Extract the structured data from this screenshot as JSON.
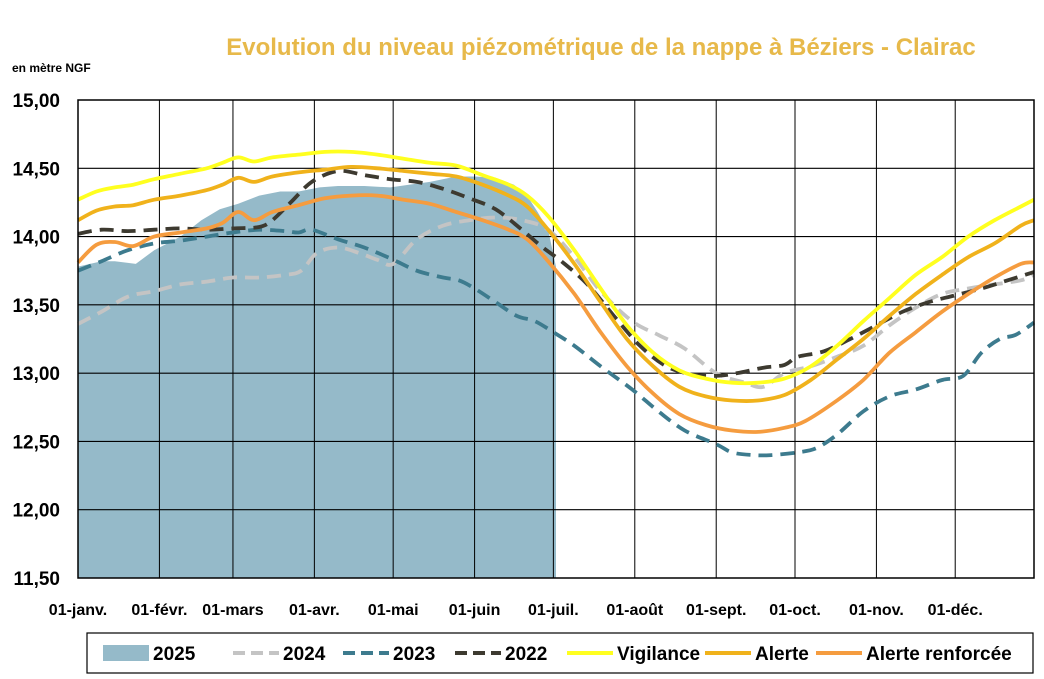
{
  "chart_data": {
    "type": "line",
    "title": "Evolution du niveau piézométrique  de la nappe à Béziers  - Clairac",
    "ylabel": "en mètre NGF",
    "xlabel": "",
    "ylim": [
      11.5,
      15.0
    ],
    "xlim": [
      1,
      365
    ],
    "grid": true,
    "legend_position": "bottom",
    "y_ticks": [
      "11,50",
      "12,00",
      "12,50",
      "13,00",
      "13,50",
      "14,00",
      "14,50",
      "15,00"
    ],
    "y_tick_values": [
      11.5,
      12.0,
      12.5,
      13.0,
      13.5,
      14.0,
      14.5,
      15.0
    ],
    "x_ticks": [
      {
        "day": 1,
        "label": "01-janv."
      },
      {
        "day": 32,
        "label": "01-févr."
      },
      {
        "day": 60,
        "label": "01-mars"
      },
      {
        "day": 91,
        "label": "01-avr."
      },
      {
        "day": 121,
        "label": "01-mai"
      },
      {
        "day": 152,
        "label": "01-juin"
      },
      {
        "day": 182,
        "label": "01-juil."
      },
      {
        "day": 213,
        "label": "01-août"
      },
      {
        "day": 244,
        "label": "01-sept."
      },
      {
        "day": 274,
        "label": "01-oct."
      },
      {
        "day": 305,
        "label": "01-nov."
      },
      {
        "day": 335,
        "label": "01-déc."
      }
    ],
    "series": [
      {
        "name": "2025",
        "kind": "area",
        "color": "#95bac9",
        "points": [
          [
            1,
            13.78
          ],
          [
            10,
            13.82
          ],
          [
            15,
            13.82
          ],
          [
            23,
            13.8
          ],
          [
            30,
            13.9
          ],
          [
            40,
            14.0
          ],
          [
            48,
            14.12
          ],
          [
            55,
            14.2
          ],
          [
            62,
            14.24
          ],
          [
            70,
            14.3
          ],
          [
            78,
            14.33
          ],
          [
            85,
            14.33
          ],
          [
            93,
            14.36
          ],
          [
            100,
            14.37
          ],
          [
            110,
            14.37
          ],
          [
            120,
            14.36
          ],
          [
            127,
            14.38
          ],
          [
            135,
            14.4
          ],
          [
            145,
            14.44
          ],
          [
            152,
            14.44
          ],
          [
            160,
            14.43
          ],
          [
            167,
            14.38
          ],
          [
            172,
            14.3
          ],
          [
            176,
            14.18
          ],
          [
            180,
            14.05
          ],
          [
            183,
            13.78
          ]
        ]
      },
      {
        "name": "2024",
        "kind": "line",
        "color": "#c4c4c4",
        "dash": "14,8",
        "points": [
          [
            1,
            13.36
          ],
          [
            10,
            13.45
          ],
          [
            20,
            13.56
          ],
          [
            30,
            13.6
          ],
          [
            40,
            13.65
          ],
          [
            50,
            13.67
          ],
          [
            60,
            13.7
          ],
          [
            70,
            13.7
          ],
          [
            80,
            13.72
          ],
          [
            86,
            13.75
          ],
          [
            92,
            13.88
          ],
          [
            100,
            13.92
          ],
          [
            108,
            13.88
          ],
          [
            115,
            13.83
          ],
          [
            121,
            13.8
          ],
          [
            130,
            13.98
          ],
          [
            140,
            14.08
          ],
          [
            150,
            14.12
          ],
          [
            160,
            14.14
          ],
          [
            170,
            14.12
          ],
          [
            180,
            14.05
          ],
          [
            190,
            13.85
          ],
          [
            200,
            13.6
          ],
          [
            212,
            13.38
          ],
          [
            222,
            13.28
          ],
          [
            232,
            13.18
          ],
          [
            244,
            13.0
          ],
          [
            255,
            12.93
          ],
          [
            262,
            12.9
          ],
          [
            270,
            13.0
          ],
          [
            280,
            13.05
          ],
          [
            290,
            13.12
          ],
          [
            300,
            13.2
          ],
          [
            310,
            13.35
          ],
          [
            320,
            13.48
          ],
          [
            330,
            13.58
          ],
          [
            340,
            13.62
          ],
          [
            350,
            13.65
          ],
          [
            360,
            13.68
          ],
          [
            365,
            13.72
          ]
        ]
      },
      {
        "name": "2023",
        "kind": "line",
        "color": "#3d7b8e",
        "dash": "14,8",
        "points": [
          [
            1,
            13.75
          ],
          [
            10,
            13.82
          ],
          [
            20,
            13.9
          ],
          [
            30,
            13.95
          ],
          [
            40,
            13.97
          ],
          [
            50,
            14.0
          ],
          [
            60,
            14.03
          ],
          [
            70,
            14.05
          ],
          [
            80,
            14.04
          ],
          [
            85,
            14.03
          ],
          [
            90,
            14.05
          ],
          [
            100,
            13.98
          ],
          [
            110,
            13.92
          ],
          [
            120,
            13.84
          ],
          [
            130,
            13.75
          ],
          [
            140,
            13.7
          ],
          [
            146,
            13.68
          ],
          [
            152,
            13.62
          ],
          [
            160,
            13.52
          ],
          [
            168,
            13.42
          ],
          [
            175,
            13.38
          ],
          [
            182,
            13.3
          ],
          [
            190,
            13.2
          ],
          [
            200,
            13.05
          ],
          [
            212,
            12.88
          ],
          [
            222,
            12.72
          ],
          [
            232,
            12.58
          ],
          [
            244,
            12.48
          ],
          [
            250,
            12.42
          ],
          [
            258,
            12.4
          ],
          [
            265,
            12.4
          ],
          [
            275,
            12.42
          ],
          [
            282,
            12.45
          ],
          [
            290,
            12.55
          ],
          [
            300,
            12.72
          ],
          [
            310,
            12.83
          ],
          [
            320,
            12.88
          ],
          [
            330,
            12.95
          ],
          [
            338,
            12.98
          ],
          [
            345,
            13.15
          ],
          [
            352,
            13.25
          ],
          [
            358,
            13.28
          ],
          [
            365,
            13.37
          ]
        ]
      },
      {
        "name": "2022",
        "kind": "line",
        "color": "#3d3a30",
        "dash": "14,8",
        "points": [
          [
            1,
            14.02
          ],
          [
            10,
            14.05
          ],
          [
            20,
            14.04
          ],
          [
            30,
            14.05
          ],
          [
            40,
            14.06
          ],
          [
            50,
            14.05
          ],
          [
            60,
            14.06
          ],
          [
            70,
            14.07
          ],
          [
            75,
            14.12
          ],
          [
            82,
            14.25
          ],
          [
            90,
            14.4
          ],
          [
            100,
            14.48
          ],
          [
            110,
            14.45
          ],
          [
            120,
            14.42
          ],
          [
            130,
            14.4
          ],
          [
            140,
            14.35
          ],
          [
            150,
            14.28
          ],
          [
            160,
            14.2
          ],
          [
            170,
            14.05
          ],
          [
            178,
            13.92
          ],
          [
            185,
            13.82
          ],
          [
            195,
            13.65
          ],
          [
            205,
            13.42
          ],
          [
            215,
            13.2
          ],
          [
            225,
            13.05
          ],
          [
            235,
            12.99
          ],
          [
            244,
            12.98
          ],
          [
            252,
            13.0
          ],
          [
            262,
            13.04
          ],
          [
            270,
            13.06
          ],
          [
            275,
            13.12
          ],
          [
            285,
            13.16
          ],
          [
            295,
            13.25
          ],
          [
            305,
            13.35
          ],
          [
            315,
            13.45
          ],
          [
            325,
            13.52
          ],
          [
            335,
            13.57
          ],
          [
            345,
            13.62
          ],
          [
            355,
            13.68
          ],
          [
            365,
            13.74
          ]
        ]
      },
      {
        "name": "Vigilance",
        "kind": "line",
        "color": "#ffff1f",
        "dash": "",
        "points": [
          [
            1,
            14.27
          ],
          [
            8,
            14.33
          ],
          [
            15,
            14.36
          ],
          [
            22,
            14.38
          ],
          [
            30,
            14.42
          ],
          [
            40,
            14.46
          ],
          [
            50,
            14.5
          ],
          [
            56,
            14.54
          ],
          [
            62,
            14.58
          ],
          [
            68,
            14.55
          ],
          [
            75,
            14.58
          ],
          [
            85,
            14.6
          ],
          [
            95,
            14.62
          ],
          [
            105,
            14.62
          ],
          [
            115,
            14.6
          ],
          [
            125,
            14.57
          ],
          [
            135,
            14.54
          ],
          [
            145,
            14.52
          ],
          [
            155,
            14.45
          ],
          [
            165,
            14.38
          ],
          [
            172,
            14.3
          ],
          [
            180,
            14.15
          ],
          [
            190,
            13.9
          ],
          [
            200,
            13.62
          ],
          [
            210,
            13.35
          ],
          [
            220,
            13.15
          ],
          [
            230,
            13.02
          ],
          [
            240,
            12.96
          ],
          [
            250,
            12.93
          ],
          [
            260,
            12.93
          ],
          [
            270,
            12.96
          ],
          [
            280,
            13.05
          ],
          [
            290,
            13.2
          ],
          [
            300,
            13.38
          ],
          [
            310,
            13.55
          ],
          [
            320,
            13.72
          ],
          [
            330,
            13.85
          ],
          [
            340,
            14.0
          ],
          [
            350,
            14.12
          ],
          [
            360,
            14.22
          ],
          [
            365,
            14.27
          ]
        ]
      },
      {
        "name": "Alerte",
        "kind": "line",
        "color": "#f0b21b",
        "dash": "",
        "points": [
          [
            1,
            14.12
          ],
          [
            8,
            14.19
          ],
          [
            15,
            14.22
          ],
          [
            22,
            14.23
          ],
          [
            30,
            14.27
          ],
          [
            40,
            14.3
          ],
          [
            50,
            14.34
          ],
          [
            56,
            14.38
          ],
          [
            62,
            14.43
          ],
          [
            68,
            14.4
          ],
          [
            75,
            14.44
          ],
          [
            85,
            14.47
          ],
          [
            95,
            14.49
          ],
          [
            105,
            14.51
          ],
          [
            115,
            14.5
          ],
          [
            125,
            14.48
          ],
          [
            135,
            14.46
          ],
          [
            145,
            14.44
          ],
          [
            155,
            14.38
          ],
          [
            165,
            14.3
          ],
          [
            172,
            14.22
          ],
          [
            180,
            14.05
          ],
          [
            190,
            13.8
          ],
          [
            200,
            13.52
          ],
          [
            210,
            13.25
          ],
          [
            220,
            13.05
          ],
          [
            230,
            12.9
          ],
          [
            240,
            12.83
          ],
          [
            250,
            12.8
          ],
          [
            260,
            12.8
          ],
          [
            270,
            12.84
          ],
          [
            280,
            12.95
          ],
          [
            290,
            13.1
          ],
          [
            300,
            13.25
          ],
          [
            310,
            13.42
          ],
          [
            320,
            13.58
          ],
          [
            330,
            13.72
          ],
          [
            340,
            13.85
          ],
          [
            350,
            13.95
          ],
          [
            360,
            14.08
          ],
          [
            365,
            14.12
          ]
        ]
      },
      {
        "name": "Alerte renforcée",
        "kind": "line",
        "color": "#f59c3f",
        "dash": "",
        "points": [
          [
            1,
            13.81
          ],
          [
            8,
            13.94
          ],
          [
            15,
            13.96
          ],
          [
            22,
            13.93
          ],
          [
            30,
            14.0
          ],
          [
            40,
            14.03
          ],
          [
            50,
            14.06
          ],
          [
            56,
            14.1
          ],
          [
            62,
            14.18
          ],
          [
            68,
            14.12
          ],
          [
            75,
            14.18
          ],
          [
            85,
            14.23
          ],
          [
            95,
            14.28
          ],
          [
            105,
            14.3
          ],
          [
            115,
            14.3
          ],
          [
            125,
            14.27
          ],
          [
            135,
            14.24
          ],
          [
            145,
            14.18
          ],
          [
            155,
            14.12
          ],
          [
            165,
            14.05
          ],
          [
            172,
            13.98
          ],
          [
            180,
            13.82
          ],
          [
            190,
            13.58
          ],
          [
            200,
            13.3
          ],
          [
            210,
            13.05
          ],
          [
            220,
            12.85
          ],
          [
            230,
            12.7
          ],
          [
            240,
            12.62
          ],
          [
            250,
            12.58
          ],
          [
            260,
            12.57
          ],
          [
            270,
            12.6
          ],
          [
            278,
            12.65
          ],
          [
            290,
            12.8
          ],
          [
            300,
            12.95
          ],
          [
            310,
            13.15
          ],
          [
            320,
            13.3
          ],
          [
            330,
            13.45
          ],
          [
            340,
            13.58
          ],
          [
            350,
            13.7
          ],
          [
            360,
            13.8
          ],
          [
            365,
            13.81
          ]
        ]
      }
    ]
  }
}
